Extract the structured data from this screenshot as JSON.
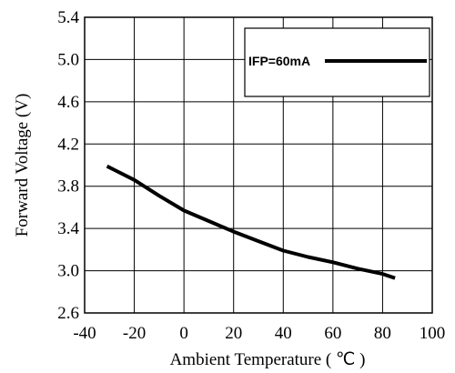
{
  "chart_data": {
    "type": "line",
    "title": "",
    "xlabel": "Ambient Temperature ( ℃ )",
    "ylabel": "Forward Voltage (V)",
    "xlim": [
      -40,
      100
    ],
    "ylim": [
      2.6,
      5.4
    ],
    "x_ticks": [
      "-40",
      "-20",
      "0",
      "20",
      "40",
      "60",
      "80",
      "100"
    ],
    "y_ticks": [
      "2.6",
      "3.0",
      "3.4",
      "3.8",
      "4.2",
      "4.6",
      "5.0",
      "5.4"
    ],
    "grid": true,
    "legend_position": "top-right",
    "series": [
      {
        "name": "IFP=60mA",
        "color": "#000000",
        "x": [
          -31,
          -20,
          -10,
          0,
          10,
          20,
          30,
          40,
          50,
          60,
          70,
          80,
          85
        ],
        "y": [
          3.99,
          3.86,
          3.71,
          3.57,
          3.47,
          3.37,
          3.28,
          3.19,
          3.13,
          3.08,
          3.02,
          2.97,
          2.93
        ]
      }
    ]
  }
}
